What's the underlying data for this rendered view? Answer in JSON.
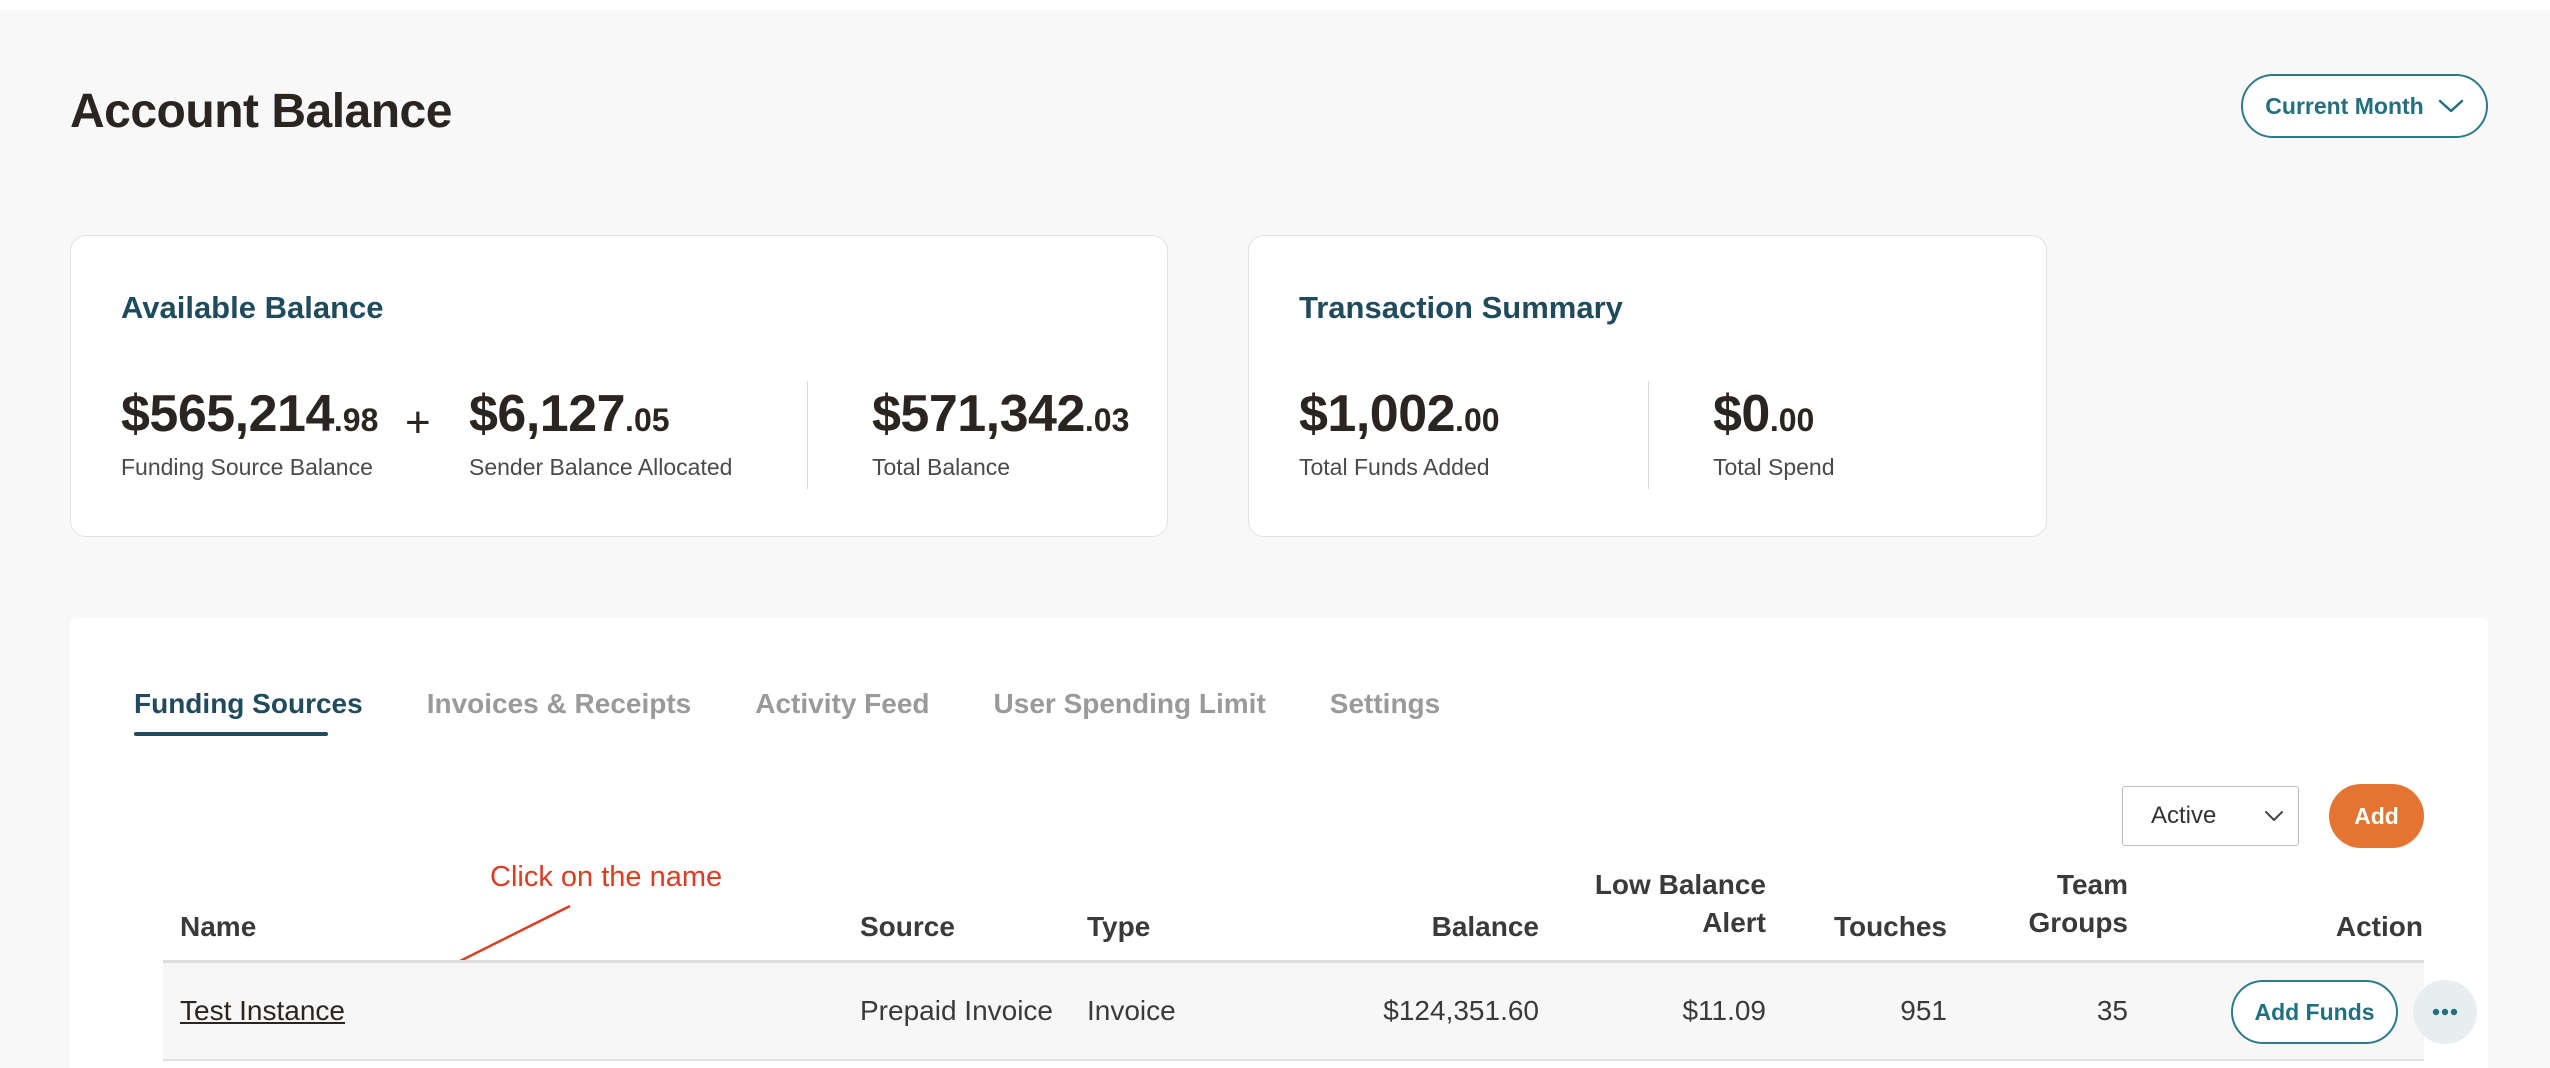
{
  "page": {
    "title": "Account Balance",
    "period_button": "Current Month"
  },
  "available_balance": {
    "title": "Available Balance",
    "funding_source": {
      "amount": "$565,214",
      "cents": ".98",
      "label": "Funding Source Balance"
    },
    "plus_sign": "+",
    "sender_allocated": {
      "amount": "$6,127",
      "cents": ".05",
      "label": "Sender Balance Allocated"
    },
    "total": {
      "amount": "$571,342",
      "cents": ".03",
      "label": "Total Balance"
    }
  },
  "transaction_summary": {
    "title": "Transaction Summary",
    "funds_added": {
      "amount": "$1,002",
      "cents": ".00",
      "label": "Total Funds Added"
    },
    "spend": {
      "amount": "$0",
      "cents": ".00",
      "label": "Total Spend"
    }
  },
  "tabs": [
    {
      "label": "Funding Sources",
      "active": true
    },
    {
      "label": "Invoices & Receipts",
      "active": false
    },
    {
      "label": "Activity Feed",
      "active": false
    },
    {
      "label": "User Spending Limit",
      "active": false
    },
    {
      "label": "Settings",
      "active": false
    }
  ],
  "filters": {
    "status_selected": "Active",
    "add_label": "Add"
  },
  "annotation": {
    "text": "Click on the name",
    "color": "#e03a22"
  },
  "table": {
    "headers": {
      "name": "Name",
      "source": "Source",
      "type": "Type",
      "balance": "Balance",
      "low_balance_alert_1": "Low Balance",
      "low_balance_alert_2": "Alert",
      "touches": "Touches",
      "team_groups_1": "Team",
      "team_groups_2": "Groups",
      "action": "Action"
    },
    "rows": [
      {
        "name": "Test Instance",
        "source": "Prepaid Invoice",
        "type": "Invoice",
        "balance": "$124,351.60",
        "low_balance_alert": "$11.09",
        "touches": "951",
        "team_groups": "35",
        "action_label": "Add Funds"
      }
    ]
  },
  "colors": {
    "accent_teal": "#2c7a8c",
    "heading_navy": "#1f4b5c",
    "brand_orange": "#e57432"
  },
  "icons": [
    "chevron-down-icon",
    "select-chevron-icon",
    "more-dots-icon",
    "annotation-arrow-icon"
  ]
}
